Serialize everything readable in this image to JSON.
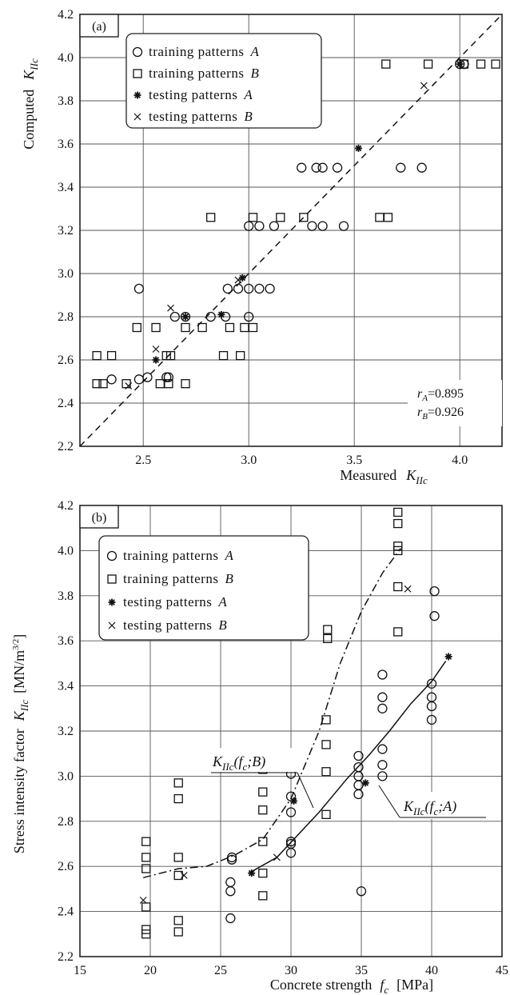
{
  "chart_data": [
    {
      "panel": "(a)",
      "type": "scatter",
      "xlabel": "Measured",
      "xlabel_symbol": "K",
      "xlabel_sub": "IIc",
      "ylabel": "Computed",
      "ylabel_symbol": "K",
      "ylabel_sub": "IIc",
      "xlim": [
        2.2,
        4.2
      ],
      "ylim": [
        2.2,
        4.2
      ],
      "x_ticks": [
        "2.5",
        "3.0",
        "3.5",
        "4.0"
      ],
      "y_ticks": [
        "2.2",
        "2.4",
        "2.6",
        "2.8",
        "3.0",
        "3.2",
        "3.4",
        "3.6",
        "3.8",
        "4.0",
        "4.2"
      ],
      "grid": true,
      "legend_position": "top-left",
      "legend": [
        {
          "marker": "circle",
          "label": "training patterns",
          "tag": "A"
        },
        {
          "marker": "square",
          "label": "training patterns",
          "tag": "B"
        },
        {
          "marker": "star",
          "label": "testing patterns",
          "tag": "A"
        },
        {
          "marker": "cross",
          "label": "testing patterns",
          "tag": "B"
        }
      ],
      "annotations": [
        {
          "sym": "r",
          "sub": "A",
          "text": "=0.895"
        },
        {
          "sym": "r",
          "sub": "B",
          "text": "=0.926"
        }
      ],
      "reference_line": {
        "style": "dashed",
        "x": [
          2.2,
          4.2
        ],
        "y": [
          2.2,
          4.2
        ]
      },
      "series": [
        {
          "marker": "circle",
          "points": [
            [
              2.48,
              2.93
            ],
            [
              2.35,
              2.51
            ],
            [
              2.48,
              2.51
            ],
            [
              2.52,
              2.52
            ],
            [
              2.61,
              2.52
            ],
            [
              2.62,
              2.52
            ],
            [
              2.65,
              2.8
            ],
            [
              2.7,
              2.8
            ],
            [
              2.82,
              2.8
            ],
            [
              2.89,
              2.8
            ],
            [
              2.9,
              2.93
            ],
            [
              2.95,
              2.93
            ],
            [
              3.0,
              2.93
            ],
            [
              3.0,
              2.8
            ],
            [
              3.05,
              2.93
            ],
            [
              3.1,
              2.93
            ],
            [
              3.0,
              3.22
            ],
            [
              3.05,
              3.22
            ],
            [
              3.12,
              3.22
            ],
            [
              3.25,
              3.49
            ],
            [
              3.32,
              3.49
            ],
            [
              3.35,
              3.49
            ],
            [
              3.42,
              3.49
            ],
            [
              3.3,
              3.22
            ],
            [
              3.35,
              3.22
            ],
            [
              3.45,
              3.22
            ],
            [
              3.72,
              3.49
            ],
            [
              3.82,
              3.49
            ],
            [
              4.0,
              3.97
            ],
            [
              4.02,
              3.97
            ]
          ]
        },
        {
          "marker": "square",
          "points": [
            [
              2.28,
              2.62
            ],
            [
              2.35,
              2.62
            ],
            [
              2.28,
              2.49
            ],
            [
              2.31,
              2.49
            ],
            [
              2.42,
              2.49
            ],
            [
              2.47,
              2.75
            ],
            [
              2.56,
              2.75
            ],
            [
              2.61,
              2.62
            ],
            [
              2.63,
              2.62
            ],
            [
              2.58,
              2.49
            ],
            [
              2.62,
              2.49
            ],
            [
              2.7,
              2.49
            ],
            [
              2.7,
              2.75
            ],
            [
              2.78,
              2.75
            ],
            [
              2.82,
              3.26
            ],
            [
              2.88,
              2.62
            ],
            [
              2.91,
              2.75
            ],
            [
              2.96,
              2.62
            ],
            [
              2.98,
              2.75
            ],
            [
              3.02,
              2.75
            ],
            [
              3.02,
              3.26
            ],
            [
              3.15,
              3.26
            ],
            [
              3.26,
              3.26
            ],
            [
              3.62,
              3.26
            ],
            [
              3.66,
              3.26
            ],
            [
              3.65,
              3.97
            ],
            [
              3.85,
              3.97
            ],
            [
              4.02,
              3.97
            ],
            [
              4.1,
              3.97
            ],
            [
              4.17,
              3.97
            ]
          ]
        },
        {
          "marker": "star",
          "points": [
            [
              2.56,
              2.6
            ],
            [
              2.7,
              2.8
            ],
            [
              2.87,
              2.81
            ],
            [
              2.97,
              2.98
            ],
            [
              3.52,
              3.58
            ],
            [
              4.0,
              3.97
            ]
          ]
        },
        {
          "marker": "cross",
          "points": [
            [
              2.43,
              2.48
            ],
            [
              2.56,
              2.65
            ],
            [
              2.63,
              2.84
            ],
            [
              2.95,
              2.97
            ],
            [
              3.83,
              3.87
            ]
          ]
        }
      ]
    },
    {
      "panel": "(b)",
      "type": "scatter",
      "xlabel": "Concrete strength",
      "xlabel_symbol": "f",
      "xlabel_sub": "c",
      "xlabel_unit": "[MPa]",
      "ylabel": "Stress intensity factor",
      "ylabel_symbol": "K",
      "ylabel_sub": "IIc",
      "ylabel_unit": "[MN/m",
      "ylabel_unit_sup": "3/2",
      "ylabel_unit_close": "]",
      "xlim": [
        15,
        45
      ],
      "ylim": [
        2.2,
        4.2
      ],
      "x_ticks": [
        "15",
        "20",
        "25",
        "30",
        "35",
        "40",
        "45"
      ],
      "y_ticks": [
        "2.2",
        "2.4",
        "2.6",
        "2.8",
        "3.0",
        "3.2",
        "3.4",
        "3.6",
        "3.8",
        "4.0",
        "4.2"
      ],
      "grid": true,
      "legend_position": "top-left",
      "legend": [
        {
          "marker": "circle",
          "label": "training patterns",
          "tag": "A"
        },
        {
          "marker": "square",
          "label": "training patterns",
          "tag": "B"
        },
        {
          "marker": "star",
          "label": "testing patterns",
          "tag": "A"
        },
        {
          "marker": "cross",
          "label": "testing patterns",
          "tag": "B"
        }
      ],
      "curves": [
        {
          "label_sym": "K",
          "label_sub": "IIc",
          "label_args": "(f",
          "label_arg_sub": "c",
          "label_tail": ";B)",
          "style": "dash-dot",
          "points": [
            [
              19.5,
              2.55
            ],
            [
              22,
              2.59
            ],
            [
              24,
              2.6
            ],
            [
              26,
              2.65
            ],
            [
              28,
              2.72
            ],
            [
              30,
              2.9
            ],
            [
              32,
              3.2
            ],
            [
              33.5,
              3.5
            ],
            [
              35,
              3.73
            ],
            [
              36.5,
              3.9
            ],
            [
              37.8,
              4.01
            ]
          ]
        },
        {
          "label_sym": "K",
          "label_sub": "IIc",
          "label_args": "(f",
          "label_arg_sub": "c",
          "label_tail": ";A)",
          "style": "solid",
          "points": [
            [
              27,
              2.57
            ],
            [
              29,
              2.64
            ],
            [
              30.2,
              2.72
            ],
            [
              32,
              2.84
            ],
            [
              34,
              2.99
            ],
            [
              35.5,
              3.09
            ],
            [
              37,
              3.2
            ],
            [
              38.5,
              3.32
            ],
            [
              40,
              3.42
            ],
            [
              41,
              3.51
            ]
          ]
        }
      ],
      "series": [
        {
          "marker": "circle",
          "points": [
            [
              25.7,
              2.37
            ],
            [
              25.7,
              2.49
            ],
            [
              25.7,
              2.53
            ],
            [
              25.8,
              2.63
            ],
            [
              25.8,
              2.64
            ],
            [
              30,
              2.66
            ],
            [
              30,
              2.7
            ],
            [
              30,
              2.71
            ],
            [
              30,
              2.84
            ],
            [
              30,
              2.91
            ],
            [
              30,
              3.01
            ],
            [
              34.8,
              2.92
            ],
            [
              34.8,
              2.96
            ],
            [
              34.8,
              3.0
            ],
            [
              34.8,
              3.04
            ],
            [
              34.8,
              3.09
            ],
            [
              35,
              2.49
            ],
            [
              36.5,
              3.0
            ],
            [
              36.5,
              3.05
            ],
            [
              36.5,
              3.12
            ],
            [
              36.5,
              3.3
            ],
            [
              36.5,
              3.35
            ],
            [
              36.5,
              3.45
            ],
            [
              40,
              3.25
            ],
            [
              40,
              3.31
            ],
            [
              40,
              3.35
            ],
            [
              40,
              3.41
            ],
            [
              40.2,
              3.71
            ],
            [
              40.2,
              3.82
            ]
          ]
        },
        {
          "marker": "square",
          "points": [
            [
              19.7,
              2.3
            ],
            [
              19.7,
              2.32
            ],
            [
              19.7,
              2.42
            ],
            [
              19.7,
              2.59
            ],
            [
              19.7,
              2.64
            ],
            [
              19.7,
              2.71
            ],
            [
              22,
              2.31
            ],
            [
              22,
              2.36
            ],
            [
              22,
              2.56
            ],
            [
              22,
              2.64
            ],
            [
              22,
              2.9
            ],
            [
              22,
              2.97
            ],
            [
              28,
              2.47
            ],
            [
              28,
              2.57
            ],
            [
              28,
              2.71
            ],
            [
              28,
              2.85
            ],
            [
              28,
              2.93
            ],
            [
              28,
              3.03
            ],
            [
              32.5,
              2.83
            ],
            [
              32.5,
              3.02
            ],
            [
              32.5,
              3.14
            ],
            [
              32.5,
              3.25
            ],
            [
              32.6,
              3.61
            ],
            [
              32.6,
              3.65
            ],
            [
              37.6,
              3.64
            ],
            [
              37.6,
              3.84
            ],
            [
              37.6,
              4.0
            ],
            [
              37.6,
              4.02
            ],
            [
              37.6,
              4.12
            ],
            [
              37.6,
              4.17
            ]
          ]
        },
        {
          "marker": "star",
          "points": [
            [
              27.2,
              2.57
            ],
            [
              30.2,
              2.89
            ],
            [
              35.3,
              2.97
            ],
            [
              41.2,
              3.53
            ]
          ]
        },
        {
          "marker": "cross",
          "points": [
            [
              19.5,
              2.45
            ],
            [
              22.4,
              2.56
            ],
            [
              29,
              2.64
            ],
            [
              38.3,
              3.83
            ]
          ]
        }
      ]
    }
  ]
}
